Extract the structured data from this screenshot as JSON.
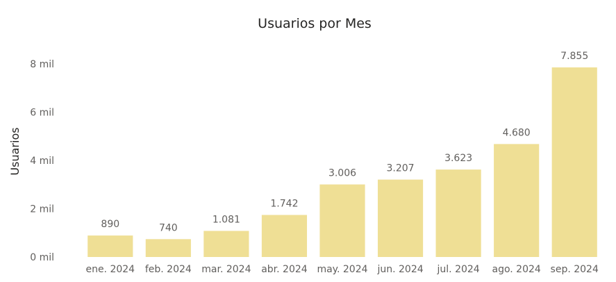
{
  "chart_data": {
    "type": "bar",
    "title": "Usuarios por Mes",
    "xlabel": "",
    "ylabel": "Usuarios",
    "categories": [
      "ene. 2024",
      "feb. 2024",
      "mar. 2024",
      "abr. 2024",
      "may. 2024",
      "jun. 2024",
      "jul. 2024",
      "ago. 2024",
      "sep. 2024"
    ],
    "values": [
      890,
      740,
      1081,
      1742,
      3006,
      3207,
      3623,
      4680,
      7855
    ],
    "data_labels": [
      "890",
      "740",
      "1.081",
      "1.742",
      "3.006",
      "3.207",
      "3.623",
      "4.680",
      "7.855"
    ],
    "yticks": [
      0,
      2000,
      4000,
      6000,
      8000
    ],
    "ytick_labels": [
      "0 mil",
      "2 mil",
      "4 mil",
      "6 mil",
      "8 mil"
    ],
    "ylim": [
      0,
      8000
    ],
    "grid": false,
    "legend": false,
    "bar_color": "#efdf95"
  }
}
